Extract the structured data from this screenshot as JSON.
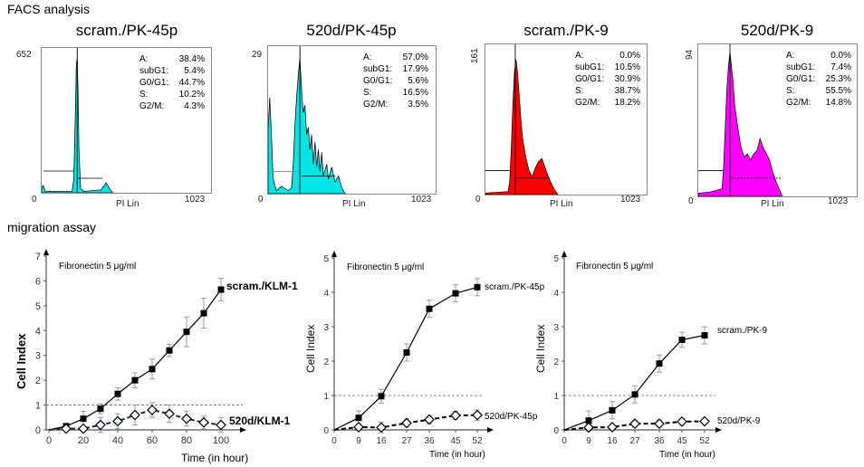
{
  "facs": {
    "heading": "FACS analysis",
    "x_axis_label": "PI Lin",
    "x_min_label": "0",
    "x_max_label": "1023",
    "panels": [
      {
        "title": "scram./PK-45p",
        "y_max_label": "652",
        "fill": "#00e5e5",
        "stats": [
          {
            "k": "A:",
            "v": "38.4%"
          },
          {
            "k": "subG1:",
            "v": "5.4%"
          },
          {
            "k": "G0/G1:",
            "v": "44.7%"
          },
          {
            "k": "S:",
            "v": "10.2%"
          },
          {
            "k": "G2/M:",
            "v": "4.3%"
          }
        ]
      },
      {
        "title": "520d/PK-45p",
        "y_max_label": "29",
        "fill": "#00e5e5",
        "stats": [
          {
            "k": "A:",
            "v": "57.0%"
          },
          {
            "k": "subG1:",
            "v": "17.9%"
          },
          {
            "k": "G0/G1:",
            "v": "5.6%"
          },
          {
            "k": "S:",
            "v": "16.5%"
          },
          {
            "k": "G2/M:",
            "v": "3.5%"
          }
        ]
      },
      {
        "title": "scram./PK-9",
        "y_max_label": "161",
        "fill": "#ff0000",
        "stats": [
          {
            "k": "A:",
            "v": "0.0%"
          },
          {
            "k": "subG1:",
            "v": "10.5%"
          },
          {
            "k": "G0/G1:",
            "v": "30.9%"
          },
          {
            "k": "S:",
            "v": "38.7%"
          },
          {
            "k": "G2/M:",
            "v": "18.2%"
          }
        ]
      },
      {
        "title": "520d/PK-9",
        "y_max_label": "94",
        "fill": "#ff00ff",
        "stats": [
          {
            "k": "A:",
            "v": "0.0%"
          },
          {
            "k": "subG1:",
            "v": "7.4%"
          },
          {
            "k": "G0/G1:",
            "v": "25.3%"
          },
          {
            "k": "S:",
            "v": "55.5%"
          },
          {
            "k": "G2/M:",
            "v": "14.8%"
          }
        ]
      }
    ]
  },
  "migration": {
    "heading": "migration assay"
  },
  "chart_data": [
    {
      "type": "line",
      "annotation": "Fibronectin 5 μg/ml",
      "xlabel": "Time (in hour)",
      "ylabel": "Cell Index",
      "x_ticks": [
        "0",
        "20",
        "40",
        "60",
        "80",
        "100"
      ],
      "y_ticks": [
        "0",
        "1",
        "2",
        "3",
        "4",
        "5",
        "6",
        "7"
      ],
      "ylim": [
        0,
        7
      ],
      "xlim": [
        0,
        100
      ],
      "reference_line": 1,
      "x": [
        0,
        10,
        20,
        30,
        40,
        50,
        60,
        70,
        80,
        90,
        100
      ],
      "series": [
        {
          "name": "scram./KLM-1",
          "marker": "filled-square",
          "style": "solid",
          "values": [
            0,
            0.15,
            0.45,
            0.85,
            1.45,
            2.0,
            2.45,
            3.2,
            3.95,
            4.7,
            5.65
          ],
          "errors": [
            0,
            0.1,
            0.3,
            0.2,
            0.25,
            0.3,
            0.4,
            0.25,
            0.6,
            0.6,
            0.45
          ]
        },
        {
          "name": "520d/KLM-1",
          "marker": "open-diamond",
          "style": "dashed",
          "values": [
            0,
            0.05,
            0.05,
            0.2,
            0.35,
            0.6,
            0.8,
            0.65,
            0.45,
            0.3,
            0.2
          ],
          "errors": [
            0,
            0.1,
            0.1,
            0.3,
            0.3,
            0.4,
            0.3,
            0.35,
            0.3,
            0.25,
            0.3
          ]
        }
      ]
    },
    {
      "type": "line",
      "annotation": "Fibronectin 5 μg/ml",
      "xlabel": "Time (in hour)",
      "ylabel": "Cell Index",
      "x_ticks": [
        "0",
        "9",
        "16",
        "27",
        "36",
        "45",
        "52"
      ],
      "y_ticks": [
        "0",
        "1",
        "2",
        "3",
        "4",
        "5"
      ],
      "ylim": [
        0,
        5
      ],
      "reference_line": 1,
      "x": [
        0,
        9,
        16,
        27,
        36,
        45,
        52
      ],
      "series": [
        {
          "name": "scram./PK-45p",
          "marker": "filled-square",
          "style": "solid",
          "values": [
            0,
            0.35,
            0.98,
            2.25,
            3.52,
            3.97,
            4.15
          ],
          "errors": [
            0,
            0.2,
            0.2,
            0.25,
            0.25,
            0.25,
            0.25
          ]
        },
        {
          "name": "520d/PK-45p",
          "marker": "open-diamond",
          "style": "dashed",
          "values": [
            0,
            0.08,
            0.07,
            0.2,
            0.3,
            0.42,
            0.43
          ],
          "errors": [
            0,
            0.1,
            0.15,
            0.12,
            0.12,
            0.12,
            0.15
          ]
        }
      ]
    },
    {
      "type": "line",
      "annotation": "Fibronectin 5 μg/ml",
      "xlabel": "Time (in hour)",
      "ylabel": "Cell Index",
      "x_ticks": [
        "0",
        "9",
        "16",
        "27",
        "36",
        "45",
        "52"
      ],
      "y_ticks": [
        "0",
        "1",
        "2",
        "3",
        "4",
        "5"
      ],
      "ylim": [
        0,
        5
      ],
      "reference_line": 1,
      "x": [
        0,
        9,
        16,
        27,
        36,
        45,
        52
      ],
      "series": [
        {
          "name": "scram./PK-9",
          "marker": "filled-square",
          "style": "solid",
          "values": [
            0,
            0.27,
            0.57,
            1.03,
            1.93,
            2.62,
            2.75
          ],
          "errors": [
            0,
            0.28,
            0.25,
            0.25,
            0.25,
            0.22,
            0.25
          ]
        },
        {
          "name": "520d/PK-9",
          "marker": "open-diamond",
          "style": "dashed",
          "values": [
            0,
            0.07,
            0.08,
            0.18,
            0.18,
            0.24,
            0.25
          ],
          "errors": [
            0,
            0.1,
            0.1,
            0.1,
            0.1,
            0.08,
            0.06
          ]
        }
      ]
    }
  ]
}
